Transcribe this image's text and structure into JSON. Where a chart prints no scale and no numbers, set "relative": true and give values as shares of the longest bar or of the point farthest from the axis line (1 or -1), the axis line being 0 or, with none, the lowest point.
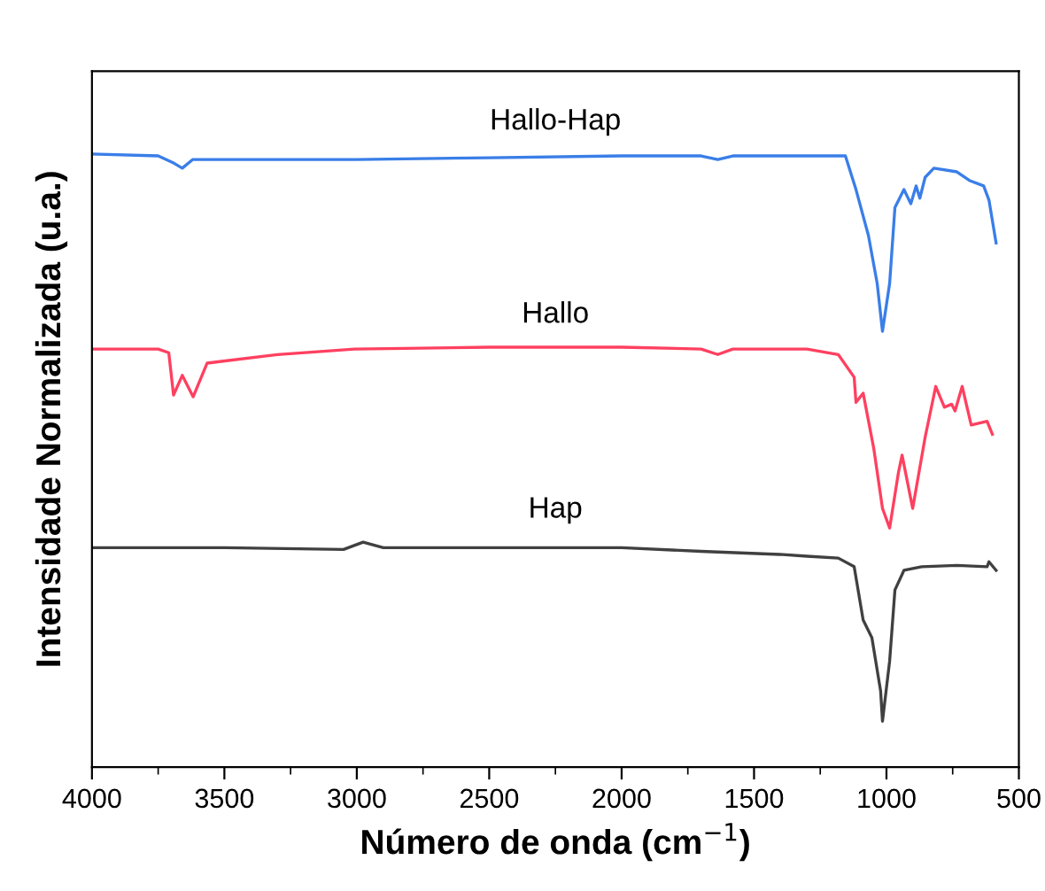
{
  "chart_data": {
    "type": "line",
    "relative": true,
    "xlabel": "Número de onda (cm$^{−1}$)",
    "ylabel": "Intensidade Normalizada (u.a.)",
    "xlim": [
      4000,
      500
    ],
    "xticks": [
      4000,
      3500,
      3000,
      2500,
      2000,
      1500,
      1000,
      500
    ],
    "tick_labels": "x",
    "grid": false,
    "legend": false,
    "marker": "none",
    "line_style": "solid",
    "series": [
      {
        "name": "Hallo-Hap",
        "color": "#3a7ee8",
        "x": [
          4000,
          3750,
          3690,
          3659,
          3620,
          3500,
          3000,
          2500,
          2000,
          1700,
          1637,
          1580,
          1300,
          1155,
          1115,
          1068,
          1035,
          1015,
          988,
          968,
          934,
          908,
          888,
          874,
          854,
          821,
          734,
          687,
          633,
          613,
          586
        ],
        "values": [
          1.0,
          0.997,
          0.985,
          0.977,
          0.991,
          0.991,
          0.991,
          0.994,
          0.997,
          0.997,
          0.991,
          0.997,
          0.997,
          0.997,
          0.942,
          0.867,
          0.789,
          0.711,
          0.789,
          0.913,
          0.942,
          0.919,
          0.948,
          0.928,
          0.962,
          0.977,
          0.971,
          0.957,
          0.948,
          0.925,
          0.855
        ]
      },
      {
        "name": "Hallo",
        "color": "#ff4060",
        "x": [
          4000,
          3750,
          3710,
          3692,
          3659,
          3618,
          3565,
          3300,
          3009,
          2500,
          2000,
          1700,
          1637,
          1580,
          1300,
          1182,
          1122,
          1115,
          1088,
          1048,
          1015,
          988,
          955,
          941,
          901,
          854,
          814,
          781,
          754,
          741,
          714,
          680,
          620,
          600
        ],
        "values": [
          0.682,
          0.682,
          0.676,
          0.607,
          0.639,
          0.604,
          0.659,
          0.673,
          0.682,
          0.685,
          0.685,
          0.682,
          0.673,
          0.682,
          0.682,
          0.673,
          0.636,
          0.595,
          0.61,
          0.52,
          0.422,
          0.39,
          0.48,
          0.509,
          0.422,
          0.538,
          0.621,
          0.587,
          0.592,
          0.581,
          0.621,
          0.558,
          0.564,
          0.543
        ]
      },
      {
        "name": "Hap",
        "color": "#404040",
        "x": [
          4000,
          3500,
          3050,
          2976,
          2900,
          2500,
          2000,
          1700,
          1403,
          1300,
          1182,
          1122,
          1088,
          1055,
          1022,
          1015,
          988,
          968,
          934,
          867,
          734,
          620,
          613,
          586
        ],
        "values": [
          0.358,
          0.358,
          0.355,
          0.367,
          0.358,
          0.358,
          0.358,
          0.352,
          0.347,
          0.344,
          0.341,
          0.327,
          0.24,
          0.211,
          0.124,
          0.075,
          0.173,
          0.289,
          0.321,
          0.327,
          0.329,
          0.327,
          0.335,
          0.321
        ]
      }
    ]
  }
}
